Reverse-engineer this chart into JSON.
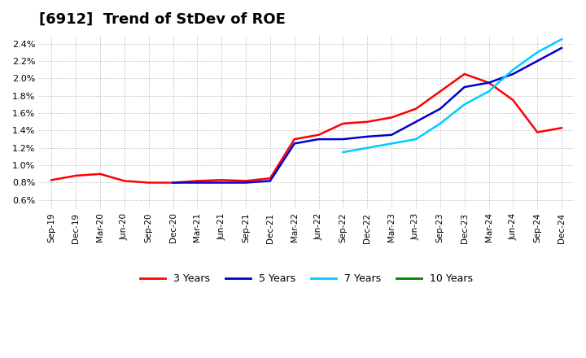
{
  "title": "[6912]  Trend of StDev of ROE",
  "title_fontsize": 13,
  "ylim": [
    0.005,
    0.025
  ],
  "yticks": [
    0.006,
    0.008,
    0.01,
    0.012,
    0.014,
    0.016,
    0.018,
    0.02,
    0.022,
    0.024
  ],
  "background_color": "#ffffff",
  "plot_bg_color": "#ffffff",
  "grid_color": "#aaaaaa",
  "x_labels": [
    "Sep-19",
    "Dec-19",
    "Mar-20",
    "Jun-20",
    "Sep-20",
    "Dec-20",
    "Mar-21",
    "Jun-21",
    "Sep-21",
    "Dec-21",
    "Mar-22",
    "Jun-22",
    "Sep-22",
    "Dec-22",
    "Mar-23",
    "Jun-23",
    "Sep-23",
    "Dec-23",
    "Mar-24",
    "Jun-24",
    "Sep-24",
    "Dec-24"
  ],
  "series": {
    "3 Years": {
      "color": "#ff0000",
      "data": [
        0.0083,
        0.0088,
        0.009,
        0.0082,
        0.008,
        0.008,
        0.0082,
        0.0083,
        0.0082,
        0.0085,
        0.013,
        0.0135,
        0.0148,
        0.015,
        0.0155,
        0.0165,
        0.0185,
        0.0205,
        0.0195,
        0.0175,
        0.0138,
        0.0143
      ]
    },
    "5 Years": {
      "color": "#0000cc",
      "data": [
        null,
        null,
        null,
        null,
        null,
        0.008,
        0.008,
        0.008,
        0.008,
        0.0082,
        0.0125,
        0.013,
        0.013,
        0.0133,
        0.0135,
        0.015,
        0.0165,
        0.019,
        0.0195,
        0.0205,
        0.022,
        0.0235
      ]
    },
    "7 Years": {
      "color": "#00ccff",
      "data": [
        null,
        null,
        null,
        null,
        null,
        null,
        null,
        null,
        null,
        null,
        null,
        null,
        0.0115,
        0.012,
        0.0125,
        0.013,
        0.0148,
        0.017,
        0.0185,
        0.021,
        0.023,
        0.0245
      ]
    },
    "10 Years": {
      "color": "#008000",
      "data": [
        null,
        null,
        null,
        null,
        null,
        null,
        null,
        null,
        null,
        null,
        null,
        null,
        null,
        null,
        null,
        null,
        null,
        null,
        null,
        null,
        null,
        null
      ]
    }
  },
  "legend_colors": [
    "#ff0000",
    "#0000cc",
    "#00ccff",
    "#008000"
  ],
  "legend_labels": [
    "3 Years",
    "5 Years",
    "7 Years",
    "10 Years"
  ]
}
